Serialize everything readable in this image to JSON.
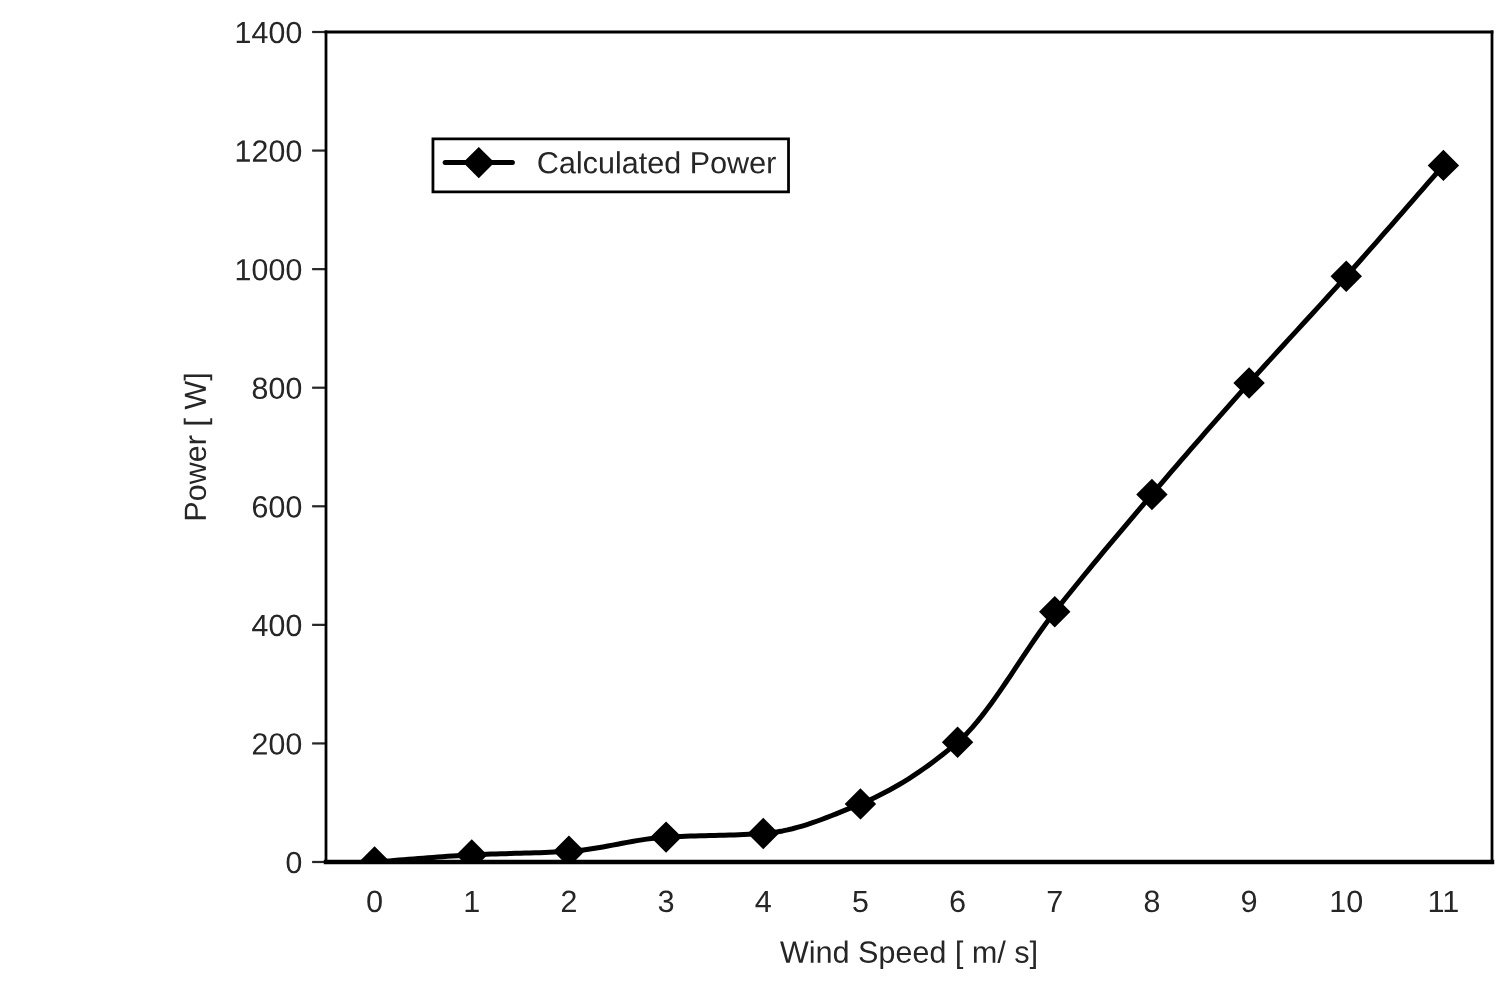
{
  "chart_data": {
    "type": "line",
    "xlabel": "Wind Speed [ m/ s]",
    "ylabel": "Power [ W]",
    "categories": [
      "0",
      "1",
      "2",
      "3",
      "4",
      "5",
      "6",
      "7",
      "8",
      "9",
      "10",
      "11"
    ],
    "series": [
      {
        "name": "Calculated Power",
        "color": "#000000",
        "values": [
          0,
          12,
          18,
          42,
          48,
          98,
          202,
          422,
          620,
          808,
          988,
          1175
        ]
      }
    ],
    "ylim": [
      0,
      1400
    ],
    "yticks": [
      0,
      200,
      400,
      600,
      800,
      1000,
      1200,
      1400
    ],
    "marker": "diamond",
    "line_style": "solid",
    "legend": "top left",
    "grid": false
  }
}
